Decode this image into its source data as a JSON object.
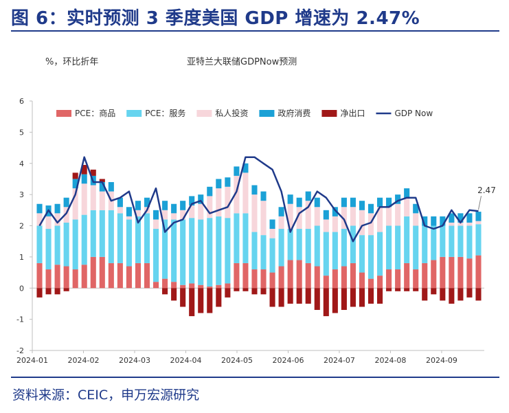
{
  "figure": {
    "title": "图 6：实时预测 3 季度美国 GDP 增速为 2.47%",
    "unit_note": "%，环比折年",
    "sub_note": "亚特兰大联储GDPNow预测",
    "source": "资料来源：CEIC，申万宏源研究"
  },
  "colors": {
    "title": "#1f3a8a",
    "pce_goods": "#e06666",
    "pce_services": "#66d4ef",
    "private_investment": "#f7d6db",
    "government": "#1ba1d6",
    "net_exports": "#a01818",
    "gdpnow": "#1f3a8a"
  },
  "chart_data": {
    "type": "bar",
    "stacked": true,
    "x_tick_labels": [
      "2024-01",
      "2024-02",
      "2024-03",
      "2024-04",
      "2024-05",
      "2024-06",
      "2024-07",
      "2024-08",
      "2024-09"
    ],
    "ylim": [
      -2,
      6
    ],
    "y_ticks": [
      "-2",
      "-1",
      "0",
      "1",
      "2",
      "3",
      "4",
      "5",
      "6"
    ],
    "legend_position": "top",
    "series": [
      {
        "name": "PCE：商品",
        "key": "pce_goods",
        "kind": "bar",
        "values": [
          0.8,
          0.6,
          0.75,
          0.7,
          0.6,
          0.75,
          1.0,
          1.0,
          0.8,
          0.8,
          0.7,
          0.8,
          0.8,
          0.2,
          0.3,
          0.2,
          0.1,
          0.15,
          0.1,
          0.05,
          0.1,
          0.15,
          0.8,
          0.8,
          0.6,
          0.6,
          0.5,
          0.7,
          0.9,
          0.9,
          0.8,
          0.7,
          0.4,
          0.6,
          0.7,
          0.8,
          0.5,
          0.3,
          0.4,
          0.6,
          0.6,
          0.8,
          0.6,
          0.8,
          0.9,
          1.0,
          1.0,
          1.0,
          0.95,
          1.05
        ]
      },
      {
        "name": "PCE：服务",
        "key": "pce_services",
        "kind": "bar",
        "values": [
          1.2,
          1.3,
          1.25,
          1.4,
          1.6,
          1.6,
          1.5,
          1.5,
          1.7,
          1.6,
          1.5,
          1.5,
          1.6,
          1.7,
          1.9,
          2.0,
          2.1,
          2.1,
          2.1,
          2.2,
          2.2,
          2.1,
          1.6,
          1.6,
          1.2,
          1.1,
          1.1,
          1.2,
          1.0,
          1.0,
          1.1,
          1.3,
          1.4,
          1.2,
          1.2,
          1.2,
          1.2,
          1.4,
          1.4,
          1.4,
          1.4,
          1.5,
          1.4,
          1.2,
          1.1,
          1.0,
          1.0,
          1.0,
          1.05,
          1.0
        ]
      },
      {
        "name": "私人投资",
        "key": "private_investment",
        "kind": "bar",
        "values": [
          0.4,
          0.4,
          0.4,
          0.5,
          1.0,
          1.0,
          0.8,
          0.6,
          0.6,
          0.2,
          0.1,
          0.2,
          0.2,
          0.3,
          0.3,
          0.2,
          0.3,
          0.4,
          0.5,
          0.7,
          0.9,
          1.0,
          1.2,
          1.3,
          1.2,
          1.1,
          0.3,
          0.4,
          0.8,
          0.7,
          0.9,
          0.6,
          0.4,
          0.5,
          0.7,
          0.6,
          0.8,
          0.7,
          0.8,
          0.6,
          0.7,
          0.6,
          0.4,
          0.0,
          0.0,
          0.0,
          0.1,
          0.1,
          0.1,
          0.1
        ]
      },
      {
        "name": "政府消费",
        "key": "government",
        "kind": "bar",
        "values": [
          0.3,
          0.35,
          0.3,
          0.3,
          0.3,
          0.3,
          0.3,
          0.3,
          0.3,
          0.3,
          0.3,
          0.3,
          0.3,
          0.3,
          0.3,
          0.3,
          0.3,
          0.3,
          0.3,
          0.3,
          0.3,
          0.3,
          0.3,
          0.3,
          0.3,
          0.3,
          0.3,
          0.3,
          0.3,
          0.3,
          0.3,
          0.3,
          0.3,
          0.3,
          0.3,
          0.3,
          0.3,
          0.3,
          0.3,
          0.3,
          0.3,
          0.3,
          0.3,
          0.3,
          0.3,
          0.3,
          0.3,
          0.3,
          0.3,
          0.3
        ]
      },
      {
        "name": "净出口",
        "key": "net_exports",
        "kind": "bar",
        "values": [
          -0.3,
          -0.2,
          -0.2,
          -0.1,
          0.2,
          0.3,
          0.2,
          0.1,
          0.0,
          0.0,
          0.0,
          0.0,
          0.0,
          0.0,
          -0.2,
          -0.4,
          -0.6,
          -0.9,
          -0.8,
          -0.8,
          -0.6,
          -0.3,
          -0.1,
          -0.1,
          -0.2,
          -0.2,
          -0.6,
          -0.6,
          -0.5,
          -0.5,
          -0.5,
          -0.7,
          -0.9,
          -0.8,
          -0.7,
          -0.6,
          -0.6,
          -0.5,
          -0.5,
          -0.1,
          -0.1,
          -0.1,
          -0.1,
          -0.4,
          -0.2,
          -0.4,
          -0.5,
          -0.4,
          -0.3,
          -0.4
        ]
      },
      {
        "name": "GDP Now",
        "key": "gdpnow",
        "kind": "line",
        "values": [
          2.0,
          2.5,
          2.1,
          2.4,
          3.0,
          4.2,
          3.4,
          3.4,
          2.8,
          2.9,
          3.1,
          2.1,
          2.5,
          3.2,
          1.8,
          2.1,
          2.2,
          2.7,
          2.8,
          2.4,
          2.5,
          2.6,
          3.1,
          4.2,
          4.2,
          4.0,
          3.8,
          3.1,
          1.8,
          2.4,
          2.6,
          3.1,
          2.9,
          2.5,
          2.2,
          1.5,
          2.0,
          2.1,
          2.6,
          2.6,
          2.8,
          2.9,
          2.9,
          2.0,
          1.9,
          2.0,
          2.5,
          2.1,
          2.5,
          2.47
        ]
      }
    ],
    "annotation": "2.47"
  }
}
